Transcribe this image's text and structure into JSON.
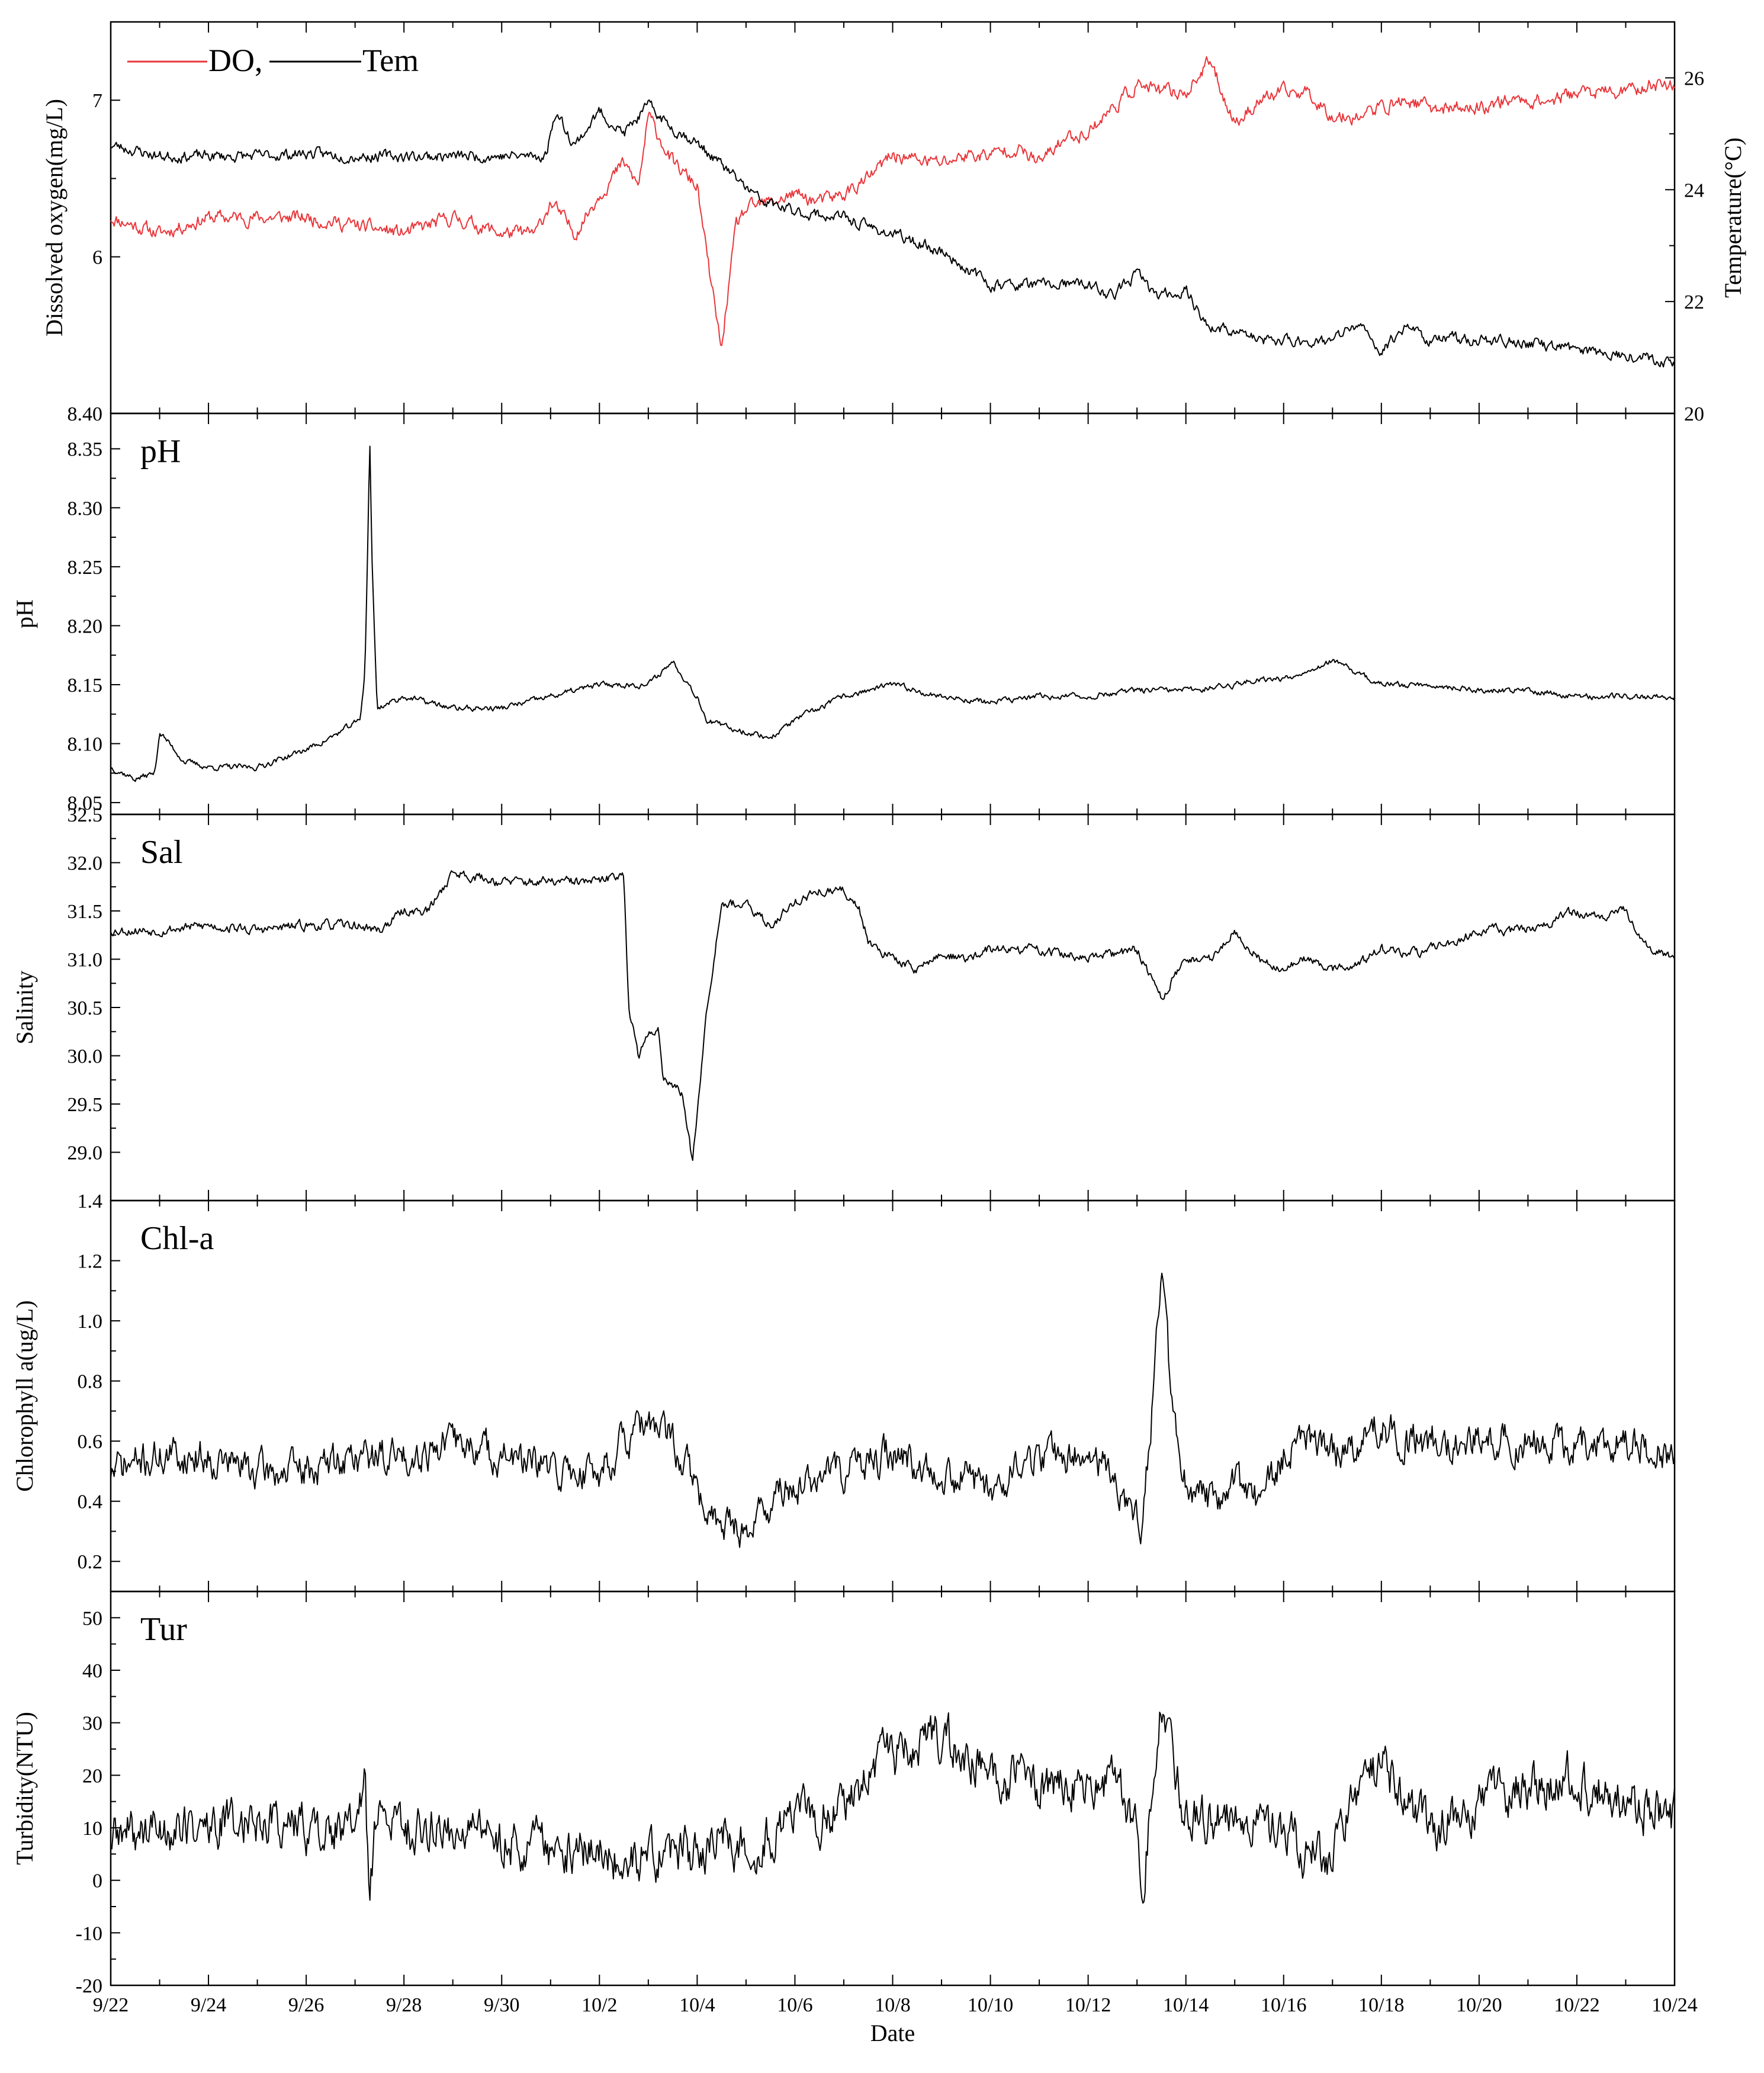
{
  "chart_data": {
    "type": "line",
    "x_axis": {
      "label": "Date",
      "ticks": [
        "9/22",
        "9/24",
        "9/26",
        "9/28",
        "9/30",
        "10/2",
        "10/4",
        "10/6",
        "10/8",
        "10/10",
        "10/12",
        "10/14",
        "10/16",
        "10/18",
        "10/20",
        "10/22",
        "10/24"
      ],
      "range_days": [
        0,
        32
      ]
    },
    "panels": [
      {
        "id": "do_tem",
        "label": "",
        "ylabel": "Dissolved oxygen(mg/L)",
        "ylim": [
          5.0,
          7.5
        ],
        "yticks": [
          6,
          7
        ],
        "bottom_tick_label": "8.40",
        "ylabel_right": "Temperature(°C)",
        "ylim_right": [
          20,
          27
        ],
        "yticks_right": [
          20,
          22,
          24,
          26
        ],
        "legend": {
          "position": "top-left",
          "items": [
            {
              "name": "DO,",
              "color": "#e8363a"
            },
            {
              "name": "Tem",
              "color": "#000000"
            }
          ]
        },
        "series": [
          {
            "name": "DO",
            "axis": "left",
            "color": "#e8363a",
            "base_x": [
              0,
              1,
              2,
              3,
              4,
              5,
              6,
              7,
              8,
              8.7,
              9,
              9.5,
              10,
              10.5,
              10.8,
              11,
              11.5,
              12,
              12.2,
              12.5,
              12.6,
              12.8,
              13,
              13.5,
              14,
              14.5,
              15,
              15.5,
              16,
              16.5,
              17,
              17.5,
              18,
              18.5,
              19,
              19.5,
              20,
              20.5,
              21,
              21.5,
              22,
              22.5,
              23,
              23.5,
              24,
              24.5,
              25,
              25.5,
              26,
              26.5,
              27,
              27.5,
              28,
              28.5,
              29,
              29.5,
              30,
              30.5,
              31,
              31.5,
              32
            ],
            "base_y": [
              6.25,
              6.15,
              6.25,
              6.25,
              6.25,
              6.2,
              6.15,
              6.25,
              6.15,
              6.15,
              6.35,
              6.15,
              6.4,
              6.6,
              6.45,
              6.9,
              6.6,
              6.45,
              6.0,
              5.4,
              5.7,
              6.2,
              6.3,
              6.35,
              6.4,
              6.35,
              6.4,
              6.5,
              6.65,
              6.62,
              6.6,
              6.65,
              6.65,
              6.7,
              6.6,
              6.75,
              6.8,
              6.95,
              7.1,
              7.05,
              7.05,
              7.25,
              6.85,
              7.0,
              7.05,
              7.05,
              6.9,
              6.9,
              6.95,
              7.0,
              6.95,
              6.95,
              6.95,
              7.0,
              7.0,
              7.0,
              7.05,
              7.05,
              7.05,
              7.1,
              7.1
            ],
            "noise": 0.045,
            "seed": 11
          },
          {
            "name": "Tem",
            "axis": "right",
            "color": "#000000",
            "base_x": [
              0,
              1,
              2,
              3,
              4,
              5,
              6,
              7,
              8,
              8.9,
              9.1,
              9.5,
              10,
              10.5,
              11,
              11.5,
              11.9,
              12.3,
              12.8,
              13.3,
              14,
              15,
              15.3,
              16,
              17,
              18,
              19,
              20,
              20.5,
              21,
              21.4,
              22,
              22.5,
              23,
              23.5,
              24,
              24.5,
              25,
              25.5,
              26,
              26.5,
              27,
              27.5,
              28,
              28.5,
              29,
              29.5,
              30,
              30.5,
              31,
              31.5,
              32
            ],
            "base_y": [
              24.8,
              24.6,
              24.6,
              24.6,
              24.65,
              24.6,
              24.6,
              24.6,
              24.6,
              24.6,
              25.4,
              24.8,
              25.4,
              25.0,
              25.5,
              25.1,
              24.9,
              24.6,
              24.2,
              23.8,
              23.6,
              23.5,
              23.4,
              23.2,
              22.9,
              22.3,
              22.3,
              22.3,
              22.1,
              22.5,
              22.1,
              22.2,
              21.5,
              21.5,
              21.3,
              21.3,
              21.3,
              21.3,
              21.6,
              21.1,
              21.6,
              21.3,
              21.35,
              21.3,
              21.3,
              21.25,
              21.2,
              21.15,
              21.1,
              21.05,
              21.0,
              20.9
            ],
            "noise": 0.1,
            "seed": 23
          }
        ]
      },
      {
        "id": "ph",
        "label": "pH",
        "ylabel": "pH",
        "ylim": [
          8.04,
          8.38
        ],
        "yticks": [
          8.05,
          8.1,
          8.15,
          8.2,
          8.25,
          8.3,
          8.35
        ],
        "series": [
          {
            "name": "pH",
            "axis": "left",
            "color": "#000000",
            "base_x": [
              0,
              0.5,
              0.9,
              1,
              1.5,
              2,
              3,
              4,
              4.5,
              5.1,
              5.2,
              5.25,
              5.3,
              5.35,
              5.45,
              6,
              7,
              8,
              9,
              10,
              11,
              11.5,
              12,
              12.2,
              12.5,
              13,
              13.5,
              14,
              15,
              16,
              17,
              18,
              19,
              20,
              21,
              22,
              23,
              23.5,
              24,
              25,
              26,
              27,
              28,
              29,
              30,
              31,
              32
            ],
            "base_y": [
              8.08,
              8.07,
              8.075,
              8.11,
              8.085,
              8.08,
              8.08,
              8.095,
              8.105,
              8.12,
              8.16,
              8.25,
              8.36,
              8.25,
              8.13,
              8.14,
              8.13,
              8.13,
              8.14,
              8.15,
              8.15,
              8.17,
              8.14,
              8.12,
              8.115,
              8.11,
              8.105,
              8.12,
              8.14,
              8.15,
              8.14,
              8.135,
              8.14,
              8.14,
              8.145,
              8.145,
              8.15,
              8.155,
              8.155,
              8.17,
              8.15,
              8.15,
              8.145,
              8.145,
              8.14,
              8.14,
              8.14
            ],
            "noise": 0.0025,
            "seed": 37
          }
        ]
      },
      {
        "id": "sal",
        "label": "Sal",
        "ylabel": "Salinity",
        "ylim": [
          28.5,
          32.5
        ],
        "yticks": [
          29.0,
          29.5,
          30.0,
          30.5,
          31.0,
          31.5,
          32.0,
          32.5
        ],
        "series": [
          {
            "name": "Salinity",
            "axis": "left",
            "color": "#000000",
            "base_x": [
              0,
              1,
              2,
              3,
              4,
              5,
              5.5,
              6,
              6.5,
              7,
              8,
              9,
              10,
              10.5,
              10.6,
              10.8,
              11,
              11.2,
              11.3,
              11.5,
              11.7,
              11.9,
              12.2,
              12.5,
              13,
              13.5,
              14,
              14.5,
              15,
              15.3,
              15.5,
              16,
              16.5,
              17,
              17.5,
              18,
              19,
              20,
              21,
              21.5,
              22,
              22.5,
              23,
              23.5,
              24,
              24.2,
              24.5,
              25,
              25.5,
              26,
              26.5,
              27,
              27.5,
              28,
              29,
              30,
              30.5,
              31,
              31.5,
              32
            ],
            "base_y": [
              31.3,
              31.3,
              31.35,
              31.3,
              31.35,
              31.35,
              31.3,
              31.5,
              31.5,
              31.9,
              31.8,
              31.8,
              31.8,
              31.9,
              30.5,
              30.0,
              30.2,
              30.3,
              29.8,
              29.7,
              29.6,
              28.9,
              30.5,
              31.6,
              31.55,
              31.35,
              31.6,
              31.7,
              31.7,
              31.55,
              31.2,
              31.0,
              30.9,
              31.05,
              31.0,
              31.1,
              31.1,
              31.0,
              31.1,
              30.6,
              31.0,
              31.0,
              31.3,
              31.0,
              30.9,
              30.95,
              31.0,
              30.9,
              30.95,
              31.1,
              31.05,
              31.1,
              31.2,
              31.3,
              31.3,
              31.5,
              31.4,
              31.5,
              31.1,
              31.0
            ],
            "noise": 0.05,
            "seed": 53
          }
        ]
      },
      {
        "id": "chl",
        "label": "Chl-a",
        "ylabel": "Chlorophyll a(ug/L)",
        "ylim": [
          0.1,
          1.4
        ],
        "yticks": [
          0.2,
          0.4,
          0.6,
          0.8,
          1.0,
          1.2
        ],
        "top_tick_label": "1.4",
        "series": [
          {
            "name": "Chlorophyll a",
            "axis": "left",
            "color": "#000000",
            "base_x": [
              0,
              1,
              2,
              3,
              4,
              5,
              6,
              7,
              8,
              9,
              10,
              10.5,
              11,
              11.5,
              12,
              12.2,
              12.5,
              13,
              13.5,
              14,
              15,
              16,
              17,
              18,
              19,
              20,
              20.5,
              20.9,
              21.1,
              21.3,
              21.5,
              21.7,
              21.9,
              22,
              22.5,
              23,
              23.5,
              24,
              24.5,
              25,
              25.5,
              26,
              26.5,
              27,
              28,
              29,
              30,
              31,
              32
            ],
            "base_y": [
              0.5,
              0.55,
              0.55,
              0.5,
              0.5,
              0.55,
              0.55,
              0.6,
              0.55,
              0.5,
              0.5,
              0.6,
              0.65,
              0.6,
              0.45,
              0.32,
              0.35,
              0.3,
              0.4,
              0.45,
              0.5,
              0.55,
              0.5,
              0.45,
              0.55,
              0.55,
              0.5,
              0.35,
              0.3,
              0.7,
              1.15,
              0.75,
              0.45,
              0.45,
              0.4,
              0.45,
              0.4,
              0.55,
              0.6,
              0.55,
              0.6,
              0.65,
              0.6,
              0.6,
              0.6,
              0.6,
              0.6,
              0.6,
              0.55
            ],
            "noise": 0.06,
            "seed": 71
          }
        ]
      },
      {
        "id": "tur",
        "label": "Tur",
        "ylabel": "Turbidity(NTU)",
        "ylim": [
          -20,
          55
        ],
        "yticks": [
          -20,
          -10,
          0,
          10,
          20,
          30,
          40,
          50
        ],
        "series": [
          {
            "name": "Turbidity",
            "axis": "left",
            "color": "#000000",
            "base_x": [
              0,
              1,
              2,
              3,
              4,
              5,
              5.2,
              5.3,
              5.4,
              5.6,
              6,
              7,
              8,
              9,
              10,
              11,
              12,
              12.5,
              13,
              13.5,
              14,
              14.5,
              15,
              15.5,
              16,
              17,
              18,
              19,
              20,
              20.5,
              21,
              21.1,
              21.5,
              22,
              23,
              23.5,
              24,
              24.5,
              25,
              25.5,
              26,
              26.5,
              27,
              28,
              29,
              30,
              31,
              32
            ],
            "base_y": [
              8,
              10,
              10,
              12,
              10,
              9,
              20,
              -5,
              10,
              12,
              10,
              10,
              8,
              6,
              5,
              4,
              5,
              8,
              6,
              9,
              12,
              12,
              14,
              20,
              24,
              27,
              20,
              18,
              18,
              20,
              10,
              -2,
              35,
              12,
              12,
              11,
              10,
              5,
              5,
              15,
              24,
              14,
              10,
              15,
              18,
              20,
              15,
              12
            ],
            "noise": 4.5,
            "seed": 89
          }
        ]
      }
    ]
  }
}
